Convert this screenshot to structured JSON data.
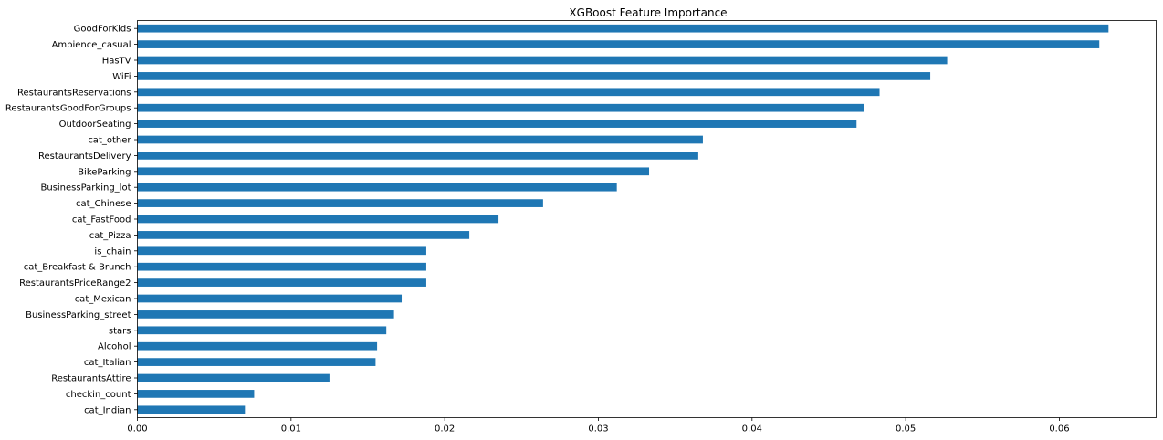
{
  "chart_data": {
    "type": "bar",
    "orientation": "horizontal",
    "title": "XGBoost Feature Importance",
    "xlabel": "",
    "ylabel": "",
    "xlim": [
      0,
      0.0663
    ],
    "xticks": [
      "0.00",
      "0.01",
      "0.02",
      "0.03",
      "0.04",
      "0.05",
      "0.06"
    ],
    "bar_color": "#1f77b4",
    "grid": false,
    "legend": "none",
    "categories": [
      "GoodForKids",
      "Ambience_casual",
      "HasTV",
      "WiFi",
      "RestaurantsReservations",
      "RestaurantsGoodForGroups",
      "OutdoorSeating",
      "cat_other",
      "RestaurantsDelivery",
      "BikeParking",
      "BusinessParking_lot",
      "cat_Chinese",
      "cat_FastFood",
      "cat_Pizza",
      "is_chain",
      "cat_Breakfast & Brunch",
      "RestaurantsPriceRange2",
      "cat_Mexican",
      "BusinessParking_street",
      "stars",
      "Alcohol",
      "cat_Italian",
      "RestaurantsAttire",
      "checkin_count",
      "cat_Indian"
    ],
    "values": [
      0.0632,
      0.0626,
      0.0527,
      0.0516,
      0.0483,
      0.0473,
      0.0468,
      0.0368,
      0.0365,
      0.0333,
      0.0312,
      0.0264,
      0.0235,
      0.0216,
      0.0188,
      0.0188,
      0.0188,
      0.0172,
      0.0167,
      0.0162,
      0.0156,
      0.0155,
      0.0125,
      0.0076,
      0.007
    ]
  }
}
